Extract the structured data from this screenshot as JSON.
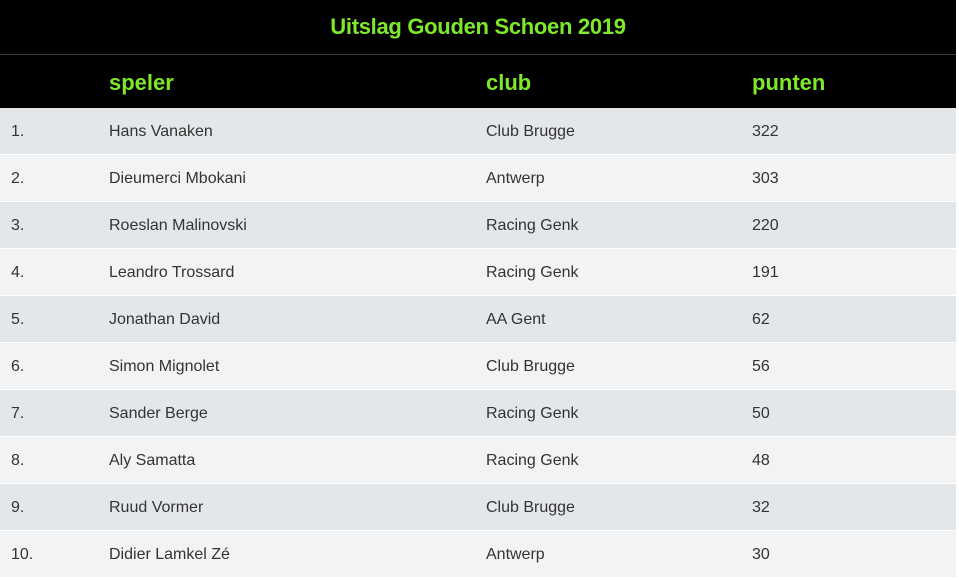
{
  "title": "Uitslag Gouden Schoen 2019",
  "headers": {
    "rank": "",
    "player": "speler",
    "club": "club",
    "points": "punten"
  },
  "rows": [
    {
      "rank": "1.",
      "player": "Hans Vanaken",
      "club": "Club Brugge",
      "points": "322"
    },
    {
      "rank": "2.",
      "player": "Dieumerci Mbokani",
      "club": "Antwerp",
      "points": "303"
    },
    {
      "rank": "3.",
      "player": "Roeslan Malinovski",
      "club": "Racing Genk",
      "points": "220"
    },
    {
      "rank": "4.",
      "player": "Leandro Trossard",
      "club": "Racing Genk",
      "points": "191"
    },
    {
      "rank": "5.",
      "player": "Jonathan David",
      "club": "AA Gent",
      "points": "62"
    },
    {
      "rank": "6.",
      "player": "Simon Mignolet",
      "club": "Club Brugge",
      "points": "56"
    },
    {
      "rank": "7.",
      "player": "Sander Berge",
      "club": "Racing Genk",
      "points": "50"
    },
    {
      "rank": "8.",
      "player": "Aly Samatta",
      "club": "Racing Genk",
      "points": "48"
    },
    {
      "rank": "9.",
      "player": "Ruud Vormer",
      "club": "Club Brugge",
      "points": "32"
    },
    {
      "rank": "10.",
      "player": "Didier Lamkel Zé",
      "club": "Antwerp",
      "points": "30"
    }
  ],
  "colors": {
    "header_background": "#000000",
    "header_text": "#7ee82a",
    "row_odd": "#e4e7e9",
    "row_even": "#f1f3f4",
    "body_text": "#333333"
  }
}
